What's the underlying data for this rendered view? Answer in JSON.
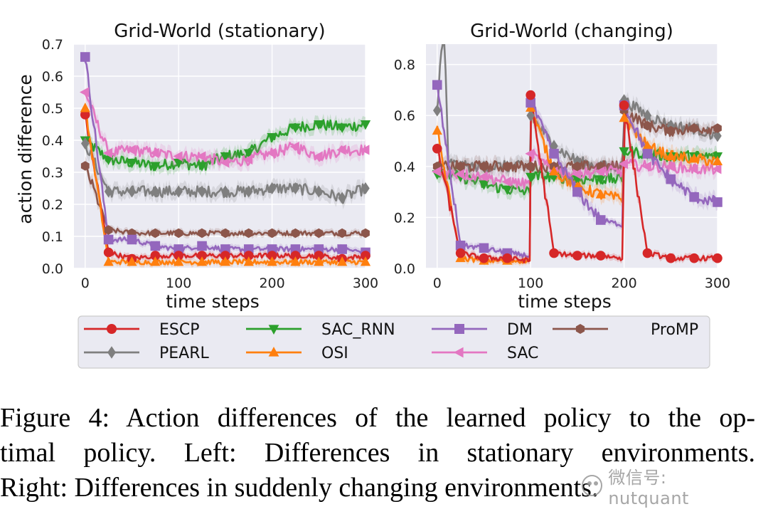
{
  "chart_data": [
    {
      "type": "line",
      "title": "Grid-World (stationary)",
      "xlabel": "time steps",
      "ylabel": "action difference",
      "xlim": [
        -12,
        300
      ],
      "ylim": [
        0.0,
        0.7
      ],
      "xticks": [
        0,
        100,
        200,
        300
      ],
      "yticks": [
        0.0,
        0.1,
        0.2,
        0.3,
        0.4,
        0.5,
        0.6,
        0.7
      ],
      "xtick_labels": [
        "0",
        "100",
        "200",
        "300"
      ],
      "ytick_labels": [
        "0.0",
        "0.1",
        "0.2",
        "0.3",
        "0.4",
        "0.5",
        "0.6",
        "0.7"
      ],
      "series": [
        {
          "name": "SAC_RNN",
          "x": [
            0,
            25,
            50,
            75,
            100,
            125,
            150,
            175,
            200,
            225,
            250,
            275,
            300
          ],
          "values": [
            0.4,
            0.34,
            0.33,
            0.32,
            0.33,
            0.32,
            0.35,
            0.36,
            0.41,
            0.44,
            0.45,
            0.44,
            0.45
          ]
        },
        {
          "name": "SAC",
          "x": [
            0,
            25,
            50,
            75,
            100,
            125,
            150,
            175,
            200,
            225,
            250,
            275,
            300
          ],
          "values": [
            0.55,
            0.36,
            0.37,
            0.36,
            0.35,
            0.35,
            0.33,
            0.34,
            0.36,
            0.38,
            0.35,
            0.37,
            0.37
          ]
        },
        {
          "name": "PEARL",
          "x": [
            0,
            25,
            50,
            75,
            100,
            125,
            150,
            175,
            200,
            225,
            250,
            275,
            300
          ],
          "values": [
            0.39,
            0.24,
            0.24,
            0.24,
            0.24,
            0.24,
            0.24,
            0.24,
            0.25,
            0.25,
            0.24,
            0.22,
            0.25
          ]
        },
        {
          "name": "ProMP",
          "x": [
            0,
            25,
            50,
            75,
            100,
            125,
            150,
            175,
            200,
            225,
            250,
            275,
            300
          ],
          "values": [
            0.32,
            0.12,
            0.11,
            0.11,
            0.11,
            0.11,
            0.11,
            0.11,
            0.11,
            0.11,
            0.11,
            0.11,
            0.11
          ]
        },
        {
          "name": "DM",
          "x": [
            0,
            25,
            50,
            75,
            100,
            125,
            150,
            175,
            200,
            225,
            250,
            275,
            300
          ],
          "values": [
            0.66,
            0.09,
            0.09,
            0.07,
            0.06,
            0.07,
            0.06,
            0.06,
            0.06,
            0.06,
            0.06,
            0.06,
            0.05
          ]
        },
        {
          "name": "ESCP",
          "x": [
            0,
            25,
            50,
            75,
            100,
            125,
            150,
            175,
            200,
            225,
            250,
            275,
            300
          ],
          "values": [
            0.48,
            0.05,
            0.03,
            0.04,
            0.04,
            0.04,
            0.04,
            0.04,
            0.04,
            0.04,
            0.04,
            0.03,
            0.04
          ]
        },
        {
          "name": "OSI",
          "x": [
            0,
            25,
            50,
            75,
            100,
            125,
            150,
            175,
            200,
            225,
            250,
            275,
            300
          ],
          "values": [
            0.5,
            0.02,
            0.02,
            0.02,
            0.02,
            0.02,
            0.02,
            0.02,
            0.02,
            0.02,
            0.02,
            0.02,
            0.02
          ]
        }
      ]
    },
    {
      "type": "line",
      "title": "Grid-World (changing)",
      "xlabel": "time steps",
      "ylabel": "",
      "xlim": [
        -12,
        300
      ],
      "ylim": [
        0.0,
        0.88
      ],
      "xticks": [
        0,
        100,
        200,
        300
      ],
      "yticks": [
        0.0,
        0.2,
        0.4,
        0.6,
        0.8
      ],
      "xtick_labels": [
        "0",
        "100",
        "200",
        "300"
      ],
      "ytick_labels": [
        "0.0",
        "0.2",
        "0.4",
        "0.6",
        "0.8"
      ],
      "series": [
        {
          "name": "PEARL",
          "x": [
            0,
            5,
            8,
            12,
            25,
            50,
            75,
            99,
            100,
            125,
            150,
            175,
            199,
            200,
            225,
            250,
            275,
            300
          ],
          "values": [
            0.62,
            0.88,
            0.88,
            0.42,
            0.4,
            0.4,
            0.4,
            0.4,
            0.6,
            0.48,
            0.42,
            0.4,
            0.4,
            0.66,
            0.6,
            0.56,
            0.55,
            0.52
          ]
        },
        {
          "name": "ProMP",
          "x": [
            0,
            25,
            50,
            75,
            99,
            100,
            125,
            150,
            175,
            199,
            200,
            225,
            250,
            275,
            300
          ],
          "values": [
            0.4,
            0.4,
            0.4,
            0.4,
            0.4,
            0.4,
            0.4,
            0.4,
            0.4,
            0.4,
            0.62,
            0.56,
            0.54,
            0.55,
            0.55
          ]
        },
        {
          "name": "SAC_RNN",
          "x": [
            0,
            25,
            50,
            75,
            99,
            100,
            125,
            150,
            175,
            199,
            200,
            225,
            250,
            275,
            300
          ],
          "values": [
            0.37,
            0.36,
            0.33,
            0.31,
            0.3,
            0.36,
            0.36,
            0.35,
            0.35,
            0.35,
            0.46,
            0.45,
            0.44,
            0.44,
            0.44
          ]
        },
        {
          "name": "SAC",
          "x": [
            0,
            25,
            50,
            75,
            99,
            100,
            125,
            150,
            175,
            199,
            200,
            225,
            250,
            275,
            300
          ],
          "values": [
            0.38,
            0.37,
            0.36,
            0.34,
            0.33,
            0.45,
            0.38,
            0.37,
            0.38,
            0.38,
            0.41,
            0.4,
            0.4,
            0.39,
            0.39
          ]
        },
        {
          "name": "OSI",
          "x": [
            0,
            25,
            50,
            75,
            99,
            100,
            125,
            150,
            175,
            199,
            200,
            225,
            250,
            275,
            300
          ],
          "values": [
            0.54,
            0.04,
            0.03,
            0.03,
            0.03,
            0.63,
            0.38,
            0.32,
            0.29,
            0.27,
            0.59,
            0.48,
            0.44,
            0.43,
            0.42
          ]
        },
        {
          "name": "DM",
          "x": [
            0,
            25,
            50,
            75,
            99,
            100,
            125,
            150,
            175,
            199,
            200,
            225,
            250,
            275,
            300
          ],
          "values": [
            0.72,
            0.09,
            0.08,
            0.06,
            0.05,
            0.65,
            0.45,
            0.3,
            0.19,
            0.17,
            0.64,
            0.45,
            0.35,
            0.28,
            0.26
          ]
        },
        {
          "name": "ESCP",
          "x": [
            0,
            25,
            50,
            75,
            99,
            100,
            125,
            150,
            175,
            199,
            200,
            225,
            250,
            275,
            300
          ],
          "values": [
            0.47,
            0.06,
            0.04,
            0.04,
            0.03,
            0.68,
            0.06,
            0.05,
            0.05,
            0.04,
            0.64,
            0.06,
            0.04,
            0.04,
            0.04
          ]
        }
      ]
    }
  ],
  "legend": {
    "entries": [
      {
        "name": "ESCP",
        "color": "#d62728",
        "marker": "circle"
      },
      {
        "name": "SAC_RNN",
        "color": "#2ca02c",
        "marker": "triangle-down"
      },
      {
        "name": "DM",
        "color": "#9467bd",
        "marker": "square"
      },
      {
        "name": "ProMP",
        "color": "#8c564b",
        "marker": "hexagon"
      },
      {
        "name": "PEARL",
        "color": "#7f7f7f",
        "marker": "diamond"
      },
      {
        "name": "OSI",
        "color": "#ff7f0e",
        "marker": "triangle-up"
      },
      {
        "name": "SAC",
        "color": "#e377c2",
        "marker": "triangle-left"
      }
    ]
  },
  "caption": {
    "line1": "Figure 4: Action differences of the learned policy to the op-",
    "line2": "timal policy. Left: Differences in stationary environments.",
    "line3": "Right: Differences in suddenly changing environments."
  },
  "watermark": {
    "text": "微信号: nutquant"
  }
}
